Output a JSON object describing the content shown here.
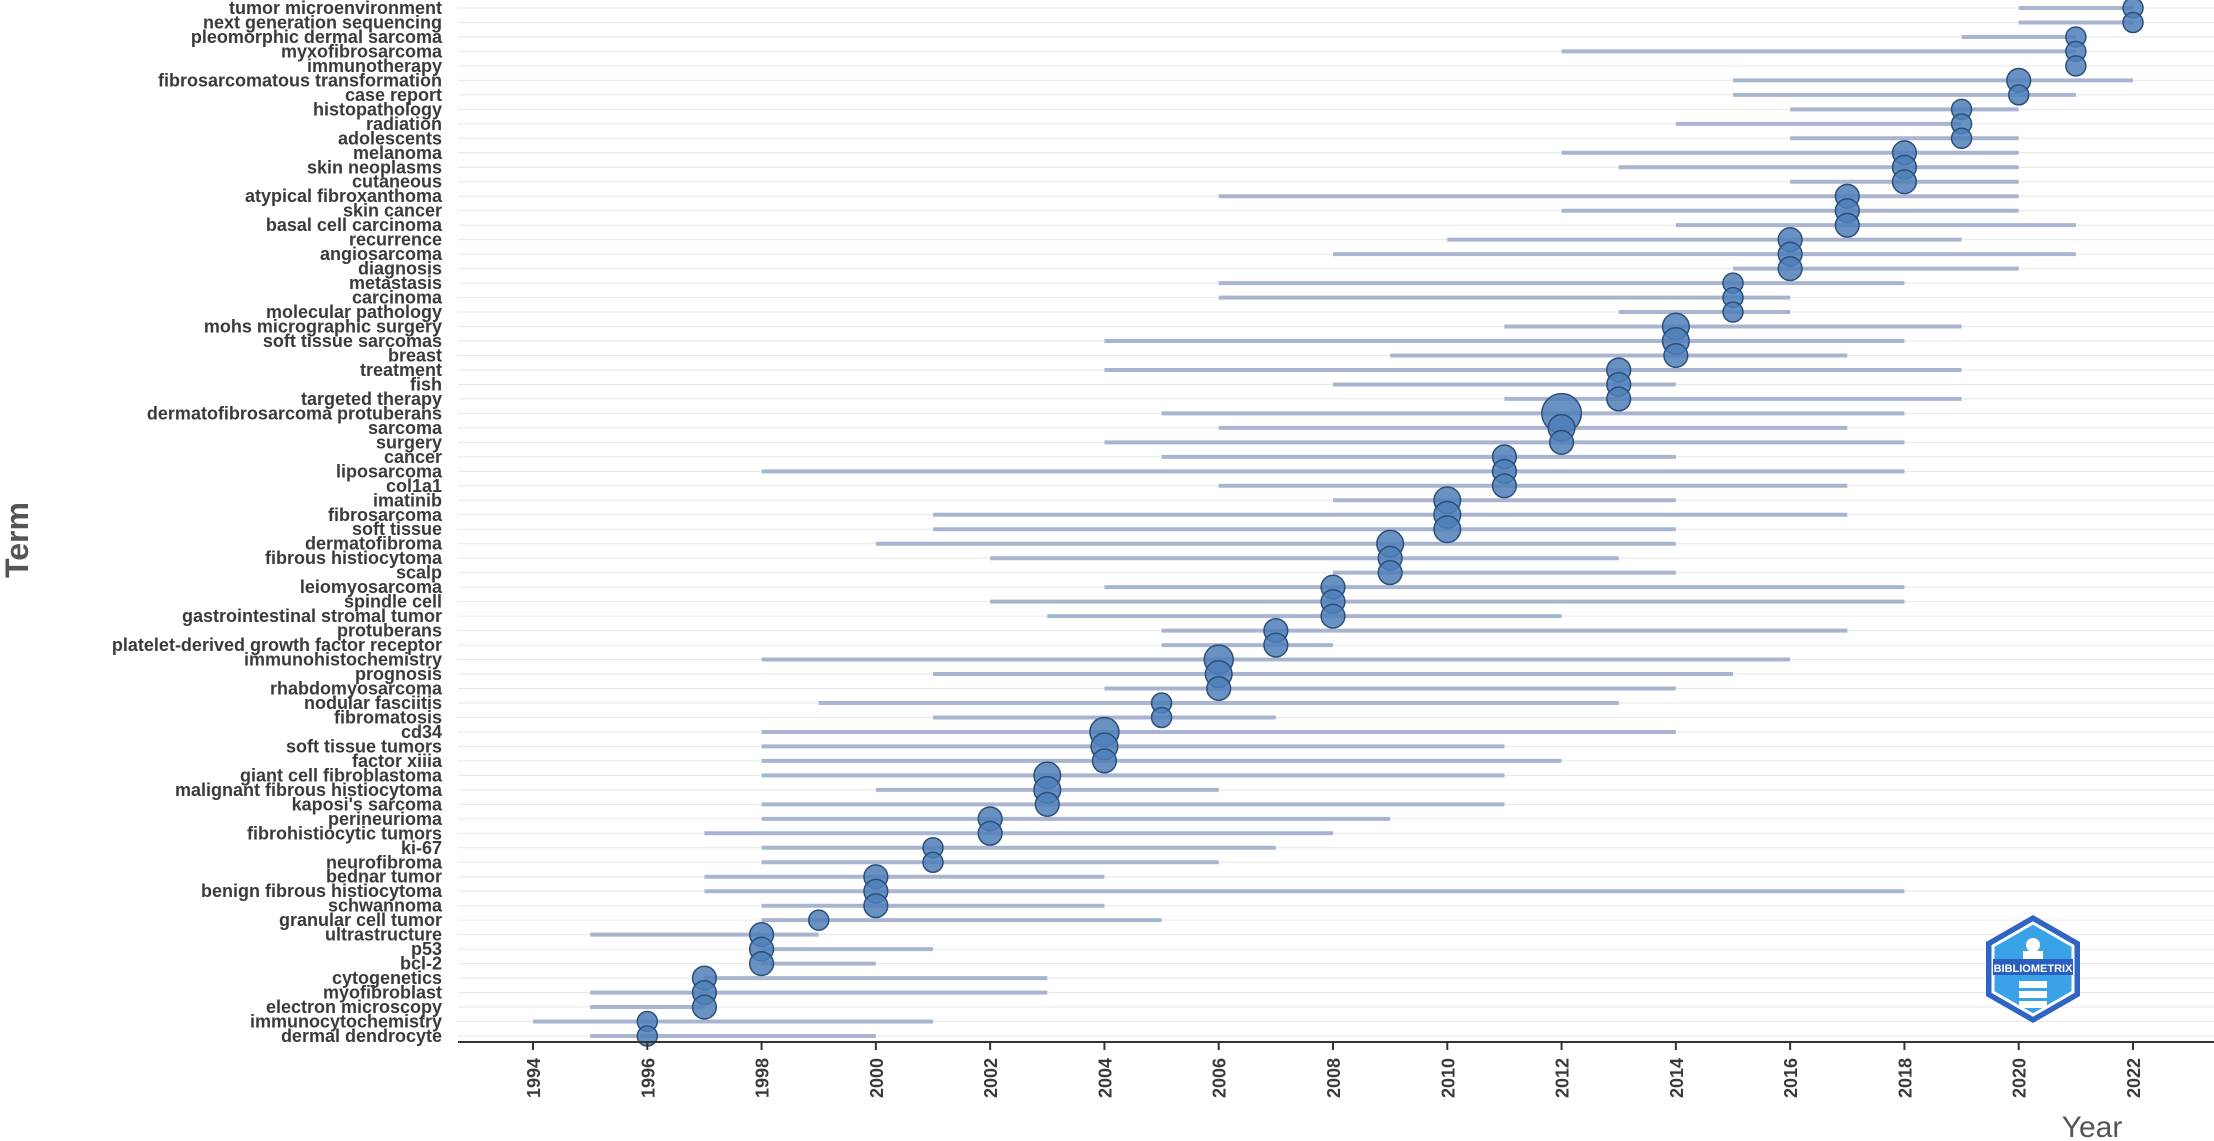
{
  "chart_data": {
    "type": "scatter",
    "xlabel": "Year",
    "ylabel": "Term",
    "xlim": [
      1993.2,
      22.5
    ],
    "x_ticks": [
      1994,
      1996,
      1998,
      2000,
      2002,
      2004,
      2006,
      2008,
      2010,
      2012,
      2014,
      2016,
      2018,
      2020,
      2022
    ],
    "grid": "horizontal",
    "series": [
      {
        "terms": [
          {
            "term": "tumor microenvironment",
            "year": 2022,
            "q1": 2020,
            "q3": 2022,
            "size": 1
          },
          {
            "term": "next generation sequencing",
            "year": 2022,
            "q1": 2020,
            "q3": 2022,
            "size": 1
          },
          {
            "term": "pleomorphic dermal sarcoma",
            "year": 2021,
            "q1": 2019,
            "q3": 2021,
            "size": 1
          },
          {
            "term": "myxofibrosarcoma",
            "year": 2021,
            "q1": 2012,
            "q3": 2021,
            "size": 1
          },
          {
            "term": "immunotherapy",
            "year": 2021,
            "q1": 2021,
            "q3": 2021,
            "size": 1
          },
          {
            "term": "fibrosarcomatous transformation",
            "year": 2020,
            "q1": 2015,
            "q3": 2022,
            "size": 2
          },
          {
            "term": "case report",
            "year": 2020,
            "q1": 2015,
            "q3": 2021,
            "size": 1
          },
          {
            "term": "histopathology",
            "year": 2019,
            "q1": 2016,
            "q3": 2020,
            "size": 1
          },
          {
            "term": "radiation",
            "year": 2019,
            "q1": 2014,
            "q3": 2019,
            "size": 1
          },
          {
            "term": "adolescents",
            "year": 2019,
            "q1": 2016,
            "q3": 2020,
            "size": 1
          },
          {
            "term": "melanoma",
            "year": 2018,
            "q1": 2012,
            "q3": 2020,
            "size": 2
          },
          {
            "term": "skin neoplasms",
            "year": 2018,
            "q1": 2013,
            "q3": 2020,
            "size": 2
          },
          {
            "term": "cutaneous",
            "year": 2018,
            "q1": 2016,
            "q3": 2020,
            "size": 2
          },
          {
            "term": "atypical fibroxanthoma",
            "year": 2017,
            "q1": 2006,
            "q3": 2020,
            "size": 2
          },
          {
            "term": "skin cancer",
            "year": 2017,
            "q1": 2012,
            "q3": 2020,
            "size": 2
          },
          {
            "term": "basal cell carcinoma",
            "year": 2017,
            "q1": 2014,
            "q3": 2021,
            "size": 2
          },
          {
            "term": "recurrence",
            "year": 2016,
            "q1": 2010,
            "q3": 2019,
            "size": 2
          },
          {
            "term": "angiosarcoma",
            "year": 2016,
            "q1": 2008,
            "q3": 2021,
            "size": 2
          },
          {
            "term": "diagnosis",
            "year": 2016,
            "q1": 2015,
            "q3": 2020,
            "size": 2
          },
          {
            "term": "metastasis",
            "year": 2015,
            "q1": 2006,
            "q3": 2018,
            "size": 1
          },
          {
            "term": "carcinoma",
            "year": 2015,
            "q1": 2006,
            "q3": 2016,
            "size": 1
          },
          {
            "term": "molecular pathology",
            "year": 2015,
            "q1": 2013,
            "q3": 2016,
            "size": 1
          },
          {
            "term": "mohs micrographic surgery",
            "year": 2014,
            "q1": 2011,
            "q3": 2019,
            "size": 3
          },
          {
            "term": "soft tissue sarcomas",
            "year": 2014,
            "q1": 2004,
            "q3": 2018,
            "size": 3
          },
          {
            "term": "breast",
            "year": 2014,
            "q1": 2009,
            "q3": 2017,
            "size": 2
          },
          {
            "term": "treatment",
            "year": 2013,
            "q1": 2004,
            "q3": 2019,
            "size": 2
          },
          {
            "term": "fish",
            "year": 2013,
            "q1": 2008,
            "q3": 2014,
            "size": 2
          },
          {
            "term": "targeted therapy",
            "year": 2013,
            "q1": 2011,
            "q3": 2019,
            "size": 2
          },
          {
            "term": "dermatofibrosarcoma protuberans",
            "year": 2012,
            "q1": 2005,
            "q3": 2018,
            "size": 10
          },
          {
            "term": "sarcoma",
            "year": 2012,
            "q1": 2006,
            "q3": 2017,
            "size": 3
          },
          {
            "term": "surgery",
            "year": 2012,
            "q1": 2004,
            "q3": 2018,
            "size": 2
          },
          {
            "term": "cancer",
            "year": 2011,
            "q1": 2005,
            "q3": 2014,
            "size": 2
          },
          {
            "term": "liposarcoma",
            "year": 2011,
            "q1": 1998,
            "q3": 2018,
            "size": 2
          },
          {
            "term": "col1a1",
            "year": 2011,
            "q1": 2006,
            "q3": 2017,
            "size": 2
          },
          {
            "term": "imatinib",
            "year": 2010,
            "q1": 2008,
            "q3": 2014,
            "size": 3
          },
          {
            "term": "fibrosarcoma",
            "year": 2010,
            "q1": 2001,
            "q3": 2017,
            "size": 3
          },
          {
            "term": "soft tissue",
            "year": 2010,
            "q1": 2001,
            "q3": 2014,
            "size": 3
          },
          {
            "term": "dermatofibroma",
            "year": 2009,
            "q1": 2000,
            "q3": 2014,
            "size": 3
          },
          {
            "term": "fibrous histiocytoma",
            "year": 2009,
            "q1": 2002,
            "q3": 2013,
            "size": 2
          },
          {
            "term": "scalp",
            "year": 2009,
            "q1": 2008,
            "q3": 2014,
            "size": 2
          },
          {
            "term": "leiomyosarcoma",
            "year": 2008,
            "q1": 2004,
            "q3": 2018,
            "size": 2
          },
          {
            "term": "spindle cell",
            "year": 2008,
            "q1": 2002,
            "q3": 2018,
            "size": 2
          },
          {
            "term": "gastrointestinal stromal tumor",
            "year": 2008,
            "q1": 2003,
            "q3": 2012,
            "size": 2
          },
          {
            "term": "protuberans",
            "year": 2007,
            "q1": 2005,
            "q3": 2017,
            "size": 2
          },
          {
            "term": "platelet-derived growth factor receptor",
            "year": 2007,
            "q1": 2005,
            "q3": 2008,
            "size": 2
          },
          {
            "term": "immunohistochemistry",
            "year": 2006,
            "q1": 1998,
            "q3": 2016,
            "size": 4
          },
          {
            "term": "prognosis",
            "year": 2006,
            "q1": 2001,
            "q3": 2015,
            "size": 3
          },
          {
            "term": "rhabdomyosarcoma",
            "year": 2006,
            "q1": 2004,
            "q3": 2014,
            "size": 2
          },
          {
            "term": "nodular fasciitis",
            "year": 2005,
            "q1": 1999,
            "q3": 2013,
            "size": 1
          },
          {
            "term": "fibromatosis",
            "year": 2005,
            "q1": 2001,
            "q3": 2007,
            "size": 1
          },
          {
            "term": "cd34",
            "year": 2004,
            "q1": 1998,
            "q3": 2014,
            "size": 4
          },
          {
            "term": "soft tissue tumors",
            "year": 2004,
            "q1": 1998,
            "q3": 2011,
            "size": 3
          },
          {
            "term": "factor xiiia",
            "year": 2004,
            "q1": 1998,
            "q3": 2012,
            "size": 2
          },
          {
            "term": "giant cell fibroblastoma",
            "year": 2003,
            "q1": 1998,
            "q3": 2011,
            "size": 3
          },
          {
            "term": "malignant fibrous histiocytoma",
            "year": 2003,
            "q1": 2000,
            "q3": 2006,
            "size": 3
          },
          {
            "term": "kaposi's sarcoma",
            "year": 2003,
            "q1": 1998,
            "q3": 2011,
            "size": 2
          },
          {
            "term": "perineurioma",
            "year": 2002,
            "q1": 1998,
            "q3": 2009,
            "size": 2
          },
          {
            "term": "fibrohistiocytic tumors",
            "year": 2002,
            "q1": 1997,
            "q3": 2008,
            "size": 2
          },
          {
            "term": "ki-67",
            "year": 2001,
            "q1": 1998,
            "q3": 2007,
            "size": 1
          },
          {
            "term": "neurofibroma",
            "year": 2001,
            "q1": 1998,
            "q3": 2006,
            "size": 1
          },
          {
            "term": "bednar tumor",
            "year": 2000,
            "q1": 1997,
            "q3": 2004,
            "size": 2
          },
          {
            "term": "benign fibrous histiocytoma",
            "year": 2000,
            "q1": 1997,
            "q3": 2018,
            "size": 2
          },
          {
            "term": "schwannoma",
            "year": 2000,
            "q1": 1998,
            "q3": 2004,
            "size": 2
          },
          {
            "term": "granular cell tumor",
            "year": 1999,
            "q1": 1998,
            "q3": 2005,
            "size": 1
          },
          {
            "term": "ultrastructure",
            "year": 1998,
            "q1": 1995,
            "q3": 1999,
            "size": 2
          },
          {
            "term": "p53",
            "year": 1998,
            "q1": 1998,
            "q3": 2001,
            "size": 2
          },
          {
            "term": "bcl-2",
            "year": 1998,
            "q1": 1998,
            "q3": 2000,
            "size": 2
          },
          {
            "term": "cytogenetics",
            "year": 1997,
            "q1": 1997,
            "q3": 2003,
            "size": 2
          },
          {
            "term": "myofibroblast",
            "year": 1997,
            "q1": 1995,
            "q3": 2003,
            "size": 2
          },
          {
            "term": "electron microscopy",
            "year": 1997,
            "q1": 1995,
            "q3": 1997,
            "size": 2
          },
          {
            "term": "immunocytochemistry",
            "year": 1996,
            "q1": 1994,
            "q3": 2001,
            "size": 1
          },
          {
            "term": "dermal dendrocyte",
            "year": 1996,
            "q1": 1995,
            "q3": 2000,
            "size": 1
          }
        ]
      }
    ],
    "colors": {
      "point": "#4f7fb8",
      "point_stroke": "#2b4f7a",
      "range": "#a9b4d1",
      "grid": "#e6e6e6",
      "axis": "#333333"
    }
  },
  "logo": {
    "text": "BIBLIOMETRIX"
  }
}
